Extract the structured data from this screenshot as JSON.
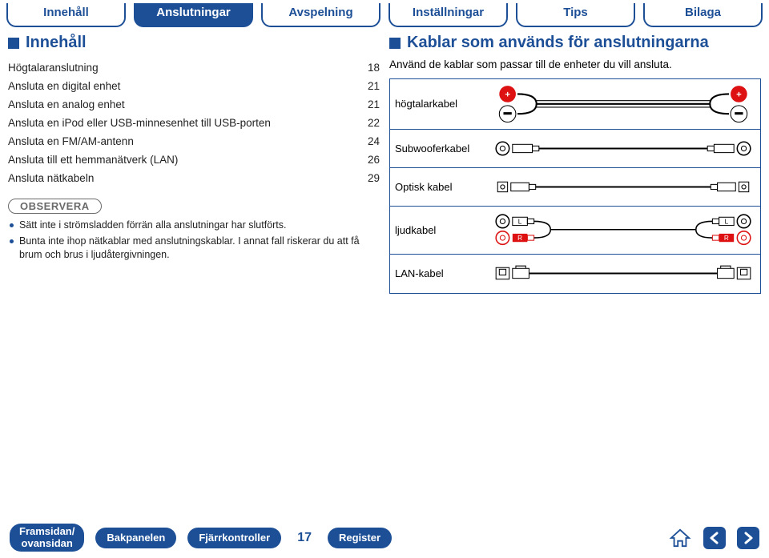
{
  "colors": {
    "brand": "#1d4f97",
    "gray": "#6a6a6a",
    "red": "#d11",
    "white": "#ffffff",
    "black": "#000000"
  },
  "tabs": [
    {
      "label": "Innehåll",
      "active": false
    },
    {
      "label": "Anslutningar",
      "active": true
    },
    {
      "label": "Avspelning",
      "active": false
    },
    {
      "label": "Inställningar",
      "active": false
    },
    {
      "label": "Tips",
      "active": false
    },
    {
      "label": "Bilaga",
      "active": false
    }
  ],
  "left": {
    "heading": "Innehåll",
    "toc": [
      {
        "title": "Högtalaranslutning",
        "page": "18"
      },
      {
        "title": "Ansluta en digital enhet",
        "page": "21"
      },
      {
        "title": "Ansluta en analog enhet",
        "page": "21"
      },
      {
        "title": "Ansluta en iPod eller USB-minnesenhet till USB-porten",
        "page": "22"
      },
      {
        "title": "Ansluta en FM/AM-antenn",
        "page": "24"
      },
      {
        "title": "Ansluta till ett hemmanätverk (LAN)",
        "page": "26"
      },
      {
        "title": "Ansluta nätkabeln",
        "page": "29"
      }
    ],
    "observe": {
      "label": "OBSERVERA",
      "items": [
        "Sätt inte i strömsladden förrän alla anslutningar har slutförts.",
        "Bunta inte ihop nätkablar med anslutningskablar. I annat fall riskerar du att få brum och brus i ljudåtergivningen."
      ]
    }
  },
  "right": {
    "heading": "Kablar som används för anslutningarna",
    "intro": "Använd de kablar som passar till de enheter du vill ansluta.",
    "cables": [
      {
        "key": "speaker",
        "label": "högtalarkabel"
      },
      {
        "key": "subwoofer",
        "label": "Subwooferkabel"
      },
      {
        "key": "optical",
        "label": "Optisk kabel"
      },
      {
        "key": "audio",
        "label": "ljudkabel"
      },
      {
        "key": "lan",
        "label": "LAN-kabel"
      }
    ]
  },
  "bottom": {
    "front": {
      "l1": "Framsidan/",
      "l2": "ovansidan"
    },
    "back": "Bakpanelen",
    "remote": "Fjärrkontroller",
    "page": "17",
    "index": "Register"
  }
}
